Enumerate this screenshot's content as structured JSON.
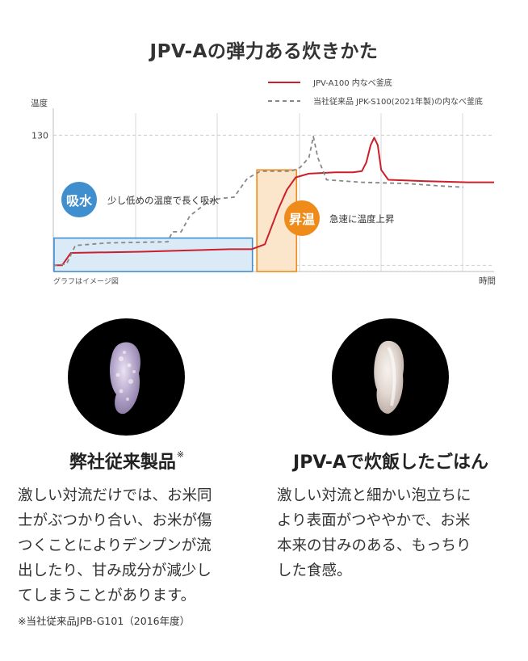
{
  "title": "JPV-Aの弾力ある炊きかた",
  "chart_data": {
    "type": "line",
    "ylabel": "温度",
    "xlabel": "時間",
    "note": "グラフはイメージ図",
    "yticks": [
      "130"
    ],
    "ytick_value": 130,
    "x_range": [
      0,
      100
    ],
    "y_range": [
      20,
      140
    ],
    "series": [
      {
        "name": "JPV-A100 内なべ釜底",
        "color": "#cc1f2a",
        "style": "solid",
        "points": [
          [
            0,
            25
          ],
          [
            2,
            25
          ],
          [
            4,
            35
          ],
          [
            20,
            36
          ],
          [
            40,
            38
          ],
          [
            44,
            38
          ],
          [
            45,
            38
          ],
          [
            48,
            42
          ],
          [
            51,
            70
          ],
          [
            53,
            86
          ],
          [
            55,
            96
          ],
          [
            58,
            99
          ],
          [
            64,
            100
          ],
          [
            68,
            100
          ],
          [
            70,
            101
          ],
          [
            71,
            108
          ],
          [
            72,
            122
          ],
          [
            72.8,
            128
          ],
          [
            73.6,
            122
          ],
          [
            74.4,
            102
          ],
          [
            76,
            94
          ],
          [
            84,
            93
          ],
          [
            94,
            92
          ],
          [
            100,
            92
          ]
        ]
      },
      {
        "name": "当社従来品 JPK-S100(2021年製)の内なべ釜底",
        "color": "#888888",
        "style": "dashed",
        "points": [
          [
            0,
            25
          ],
          [
            3,
            26
          ],
          [
            5,
            41
          ],
          [
            12,
            43
          ],
          [
            26,
            44
          ],
          [
            27,
            52
          ],
          [
            29,
            52
          ],
          [
            31,
            65
          ],
          [
            35,
            76
          ],
          [
            38,
            79
          ],
          [
            41,
            80
          ],
          [
            44,
            95
          ],
          [
            47,
            101
          ],
          [
            54,
            101
          ],
          [
            56,
            104
          ],
          [
            58,
            112
          ],
          [
            59,
            129
          ],
          [
            60,
            112
          ],
          [
            62,
            94
          ],
          [
            70,
            92
          ],
          [
            80,
            91
          ],
          [
            88,
            89
          ],
          [
            93,
            88
          ]
        ]
      }
    ],
    "annotations": [
      {
        "label": "吸水",
        "text": "少し低めの温度で長く吸水",
        "color": "#3f8fcf",
        "x_range": [
          0,
          45
        ],
        "y_range": [
          20,
          47
        ]
      },
      {
        "label": "昇温",
        "text": "急速に温度上昇",
        "color": "#ef8b1b",
        "x_range": [
          46,
          55
        ],
        "y_range": [
          20,
          102
        ]
      }
    ],
    "grid": true
  },
  "panels": [
    {
      "title": "弊社従来製品",
      "title_mark": "※",
      "lines": [
        "激しい対流だけでは、お米同",
        "士がぶつかり合い、お米が傷",
        "つくことによりデンプンが流",
        "出したり、甘み成分が減少し",
        "てしまうことがあります。"
      ]
    },
    {
      "title": "JPV-Aで炊飯したごはん",
      "lines": [
        "激しい対流と細かい泡立ちに",
        "より表面がつややかで、お米",
        "本来の甘みのある、もっちり",
        "した食感。"
      ]
    }
  ],
  "footnote": "※当社従来品JPB-G101（2016年度）",
  "colors": {
    "accent_red": "#cc1f2a",
    "blue": "#3f8fcf",
    "orange": "#ef8b1b",
    "gray": "#888888"
  }
}
